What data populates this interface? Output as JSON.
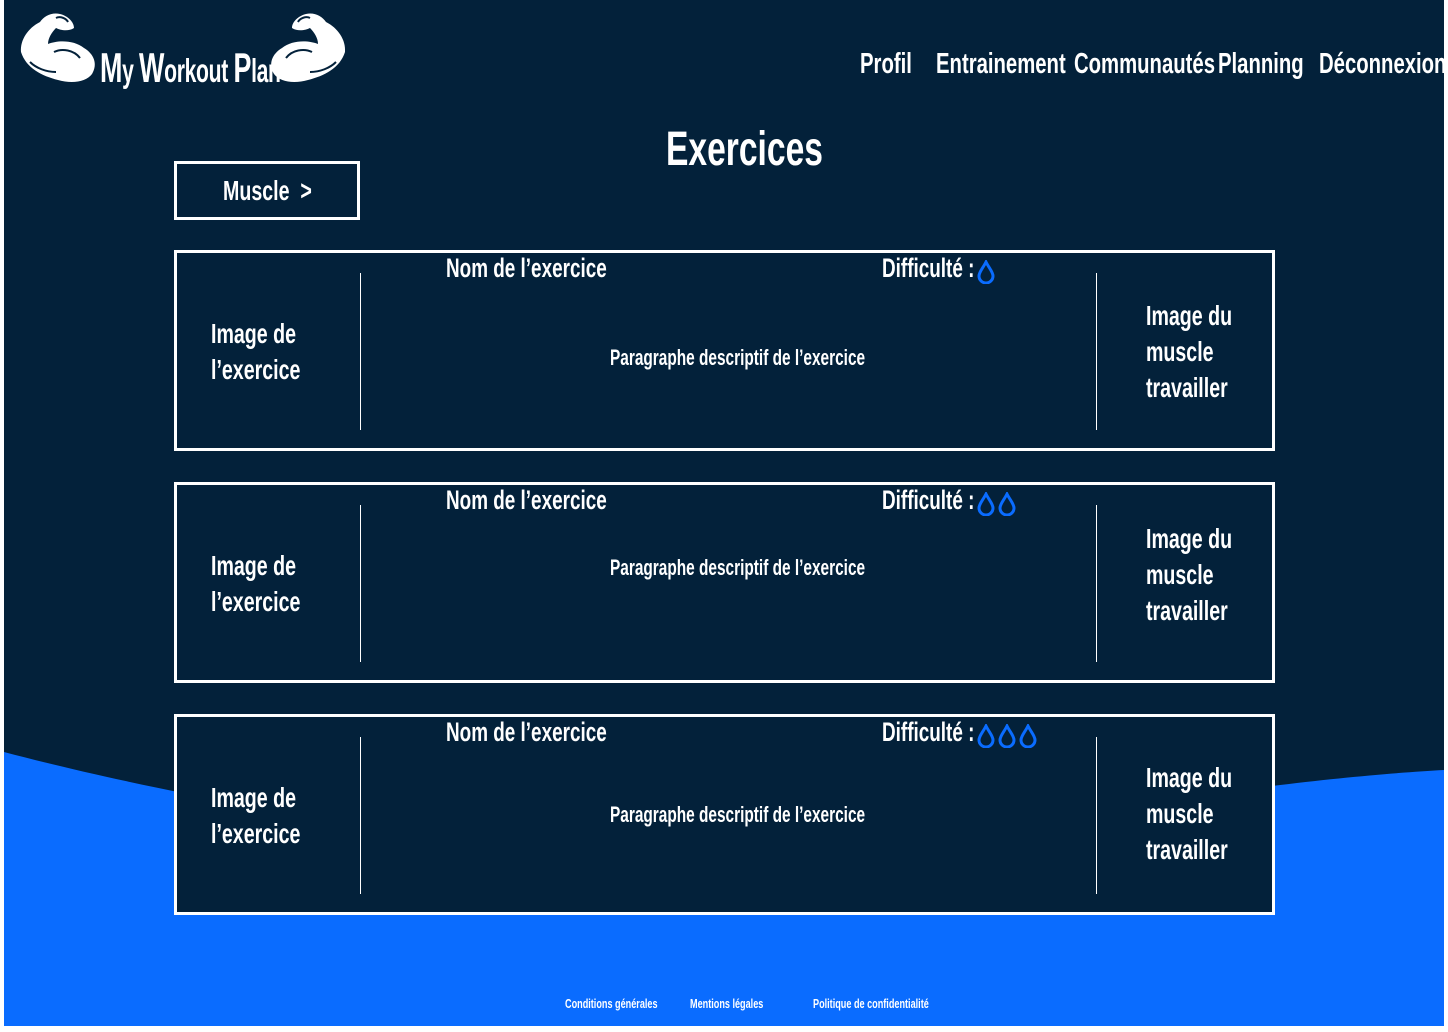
{
  "colors": {
    "background": "#03213a",
    "accent_blue": "#0a6cff",
    "text": "#ffffff"
  },
  "header": {
    "logo": {
      "first": [
        "M",
        "y"
      ],
      "second": [
        "W",
        "orkout"
      ],
      "third": [
        "P",
        "lan"
      ]
    },
    "nav": [
      "Profil",
      "Entrainement",
      "Communautés",
      "Planning",
      "Déconnexion"
    ]
  },
  "page": {
    "title": "Exercices",
    "filter_label": "Muscle",
    "filter_chevron": ">"
  },
  "exercises": [
    {
      "image_lines": [
        "Image de",
        "l’exercice"
      ],
      "name": "Nom de l’exercice",
      "difficulty_label": "Difficulté :",
      "difficulty": 1,
      "description": "Paragraphe descriptif de l’exercice",
      "muscle_lines": [
        "Image du",
        "muscle",
        "travailler"
      ]
    },
    {
      "image_lines": [
        "Image de",
        "l’exercice"
      ],
      "name": "Nom de l’exercice",
      "difficulty_label": "Difficulté :",
      "difficulty": 2,
      "description": "Paragraphe descriptif de l’exercice",
      "muscle_lines": [
        "Image du",
        "muscle",
        "travailler"
      ]
    },
    {
      "image_lines": [
        "Image de",
        "l’exercice"
      ],
      "name": "Nom de l’exercice",
      "difficulty_label": "Difficulté :",
      "difficulty": 3,
      "description": "Paragraphe descriptif de l’exercice",
      "muscle_lines": [
        "Image du",
        "muscle",
        "travailler"
      ]
    }
  ],
  "footer": {
    "links": [
      "Conditions générales",
      "Mentions légales",
      "Politique de confidentialité"
    ]
  }
}
